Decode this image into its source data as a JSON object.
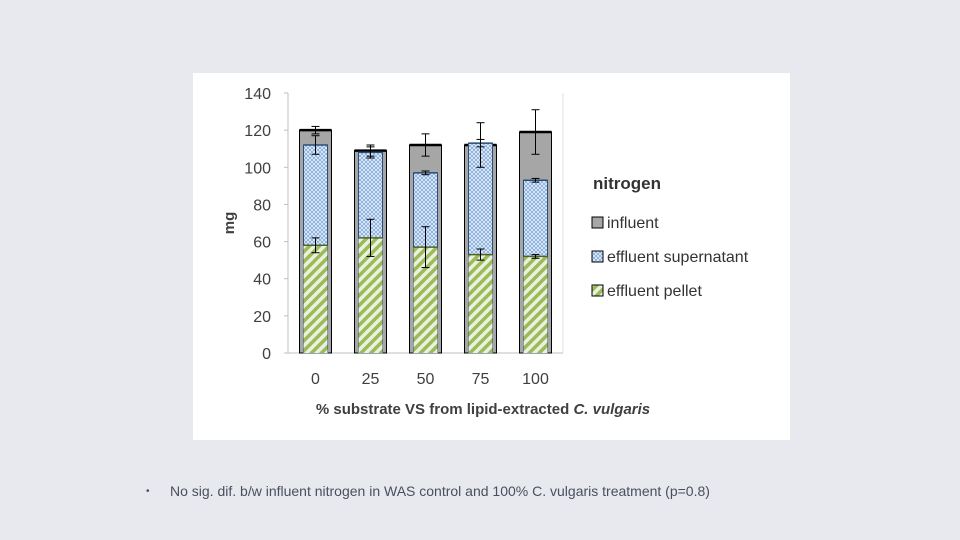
{
  "slide": {
    "bullet_text": "No sig. dif. b/w influent nitrogen in WAS control and 100% C. vulgaris treatment (p=0.8)"
  },
  "colors": {
    "influent": "#a6a6a6",
    "supernatant_fill": "#dbe5f1",
    "supernatant_line": "#2c4d75",
    "pellet_fill": "#ebf1de",
    "pellet_stripe": "#9bbb59",
    "background": "#e7e9ef"
  },
  "chart_data": {
    "type": "bar",
    "title": "",
    "xlabel_prefix": "% substrate VS from lipid-extracted ",
    "xlabel_italic": "C. vulgaris",
    "ylabel": "mg",
    "ylim": [
      0,
      140
    ],
    "yticks": [
      "0",
      "20",
      "40",
      "60",
      "80",
      "100",
      "120",
      "140"
    ],
    "categories": [
      "0",
      "25",
      "50",
      "75",
      "100"
    ],
    "legend_title": "nitrogen",
    "legend_position": "right",
    "grid": false,
    "series": [
      {
        "name": "influent",
        "values": [
          120,
          109,
          112,
          112,
          119
        ],
        "errors": [
          2,
          3,
          6,
          12,
          12
        ],
        "style": "solid-gray"
      },
      {
        "name": "effluent supernatant",
        "values": [
          112,
          108,
          97,
          113,
          93
        ],
        "errors": [
          5,
          3,
          1,
          2,
          1
        ],
        "style": "checker-blue"
      },
      {
        "name": "effluent pellet",
        "values": [
          58,
          62,
          57,
          53,
          52
        ],
        "errors": [
          4,
          10,
          11,
          3,
          1
        ],
        "style": "hatch-green"
      }
    ]
  }
}
